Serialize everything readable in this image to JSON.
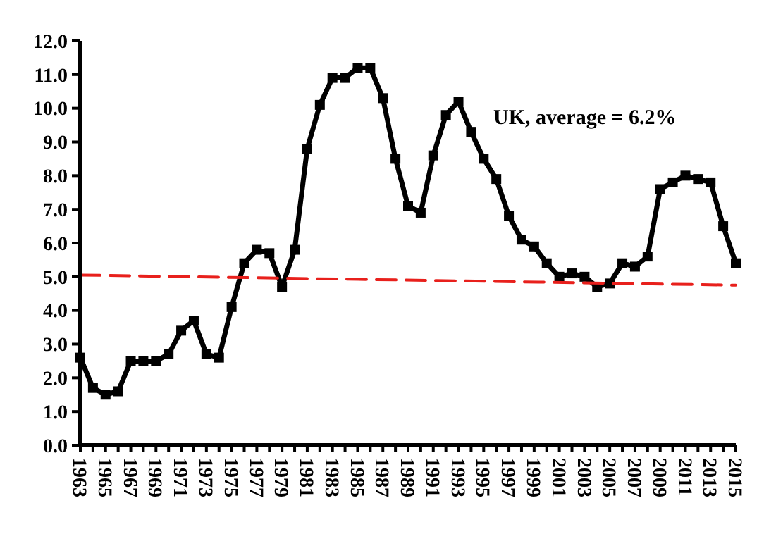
{
  "chart_data": {
    "type": "line",
    "x": [
      1963,
      1964,
      1965,
      1966,
      1967,
      1968,
      1969,
      1970,
      1971,
      1972,
      1973,
      1974,
      1975,
      1976,
      1977,
      1978,
      1979,
      1980,
      1981,
      1982,
      1983,
      1984,
      1985,
      1986,
      1987,
      1988,
      1989,
      1990,
      1991,
      1992,
      1993,
      1994,
      1995,
      1996,
      1997,
      1998,
      1999,
      2000,
      2001,
      2002,
      2003,
      2004,
      2005,
      2006,
      2007,
      2008,
      2009,
      2010,
      2011,
      2012,
      2013,
      2014,
      2015
    ],
    "series": [
      {
        "color": "#000000",
        "marker": "square",
        "line_style": "solid",
        "values": [
          2.6,
          1.7,
          1.5,
          1.6,
          2.5,
          2.5,
          2.5,
          2.7,
          3.4,
          3.7,
          2.7,
          2.6,
          4.1,
          5.4,
          5.8,
          5.7,
          4.7,
          5.8,
          8.8,
          10.1,
          10.9,
          10.9,
          11.2,
          11.2,
          10.3,
          8.5,
          7.1,
          6.9,
          8.6,
          9.8,
          10.2,
          9.3,
          8.5,
          7.9,
          6.8,
          6.1,
          5.9,
          5.4,
          5.0,
          5.1,
          5.0,
          4.7,
          4.8,
          5.4,
          5.3,
          5.6,
          7.6,
          7.8,
          8.0,
          7.9,
          7.8,
          6.5,
          5.4
        ]
      },
      {
        "type": "line",
        "color": "#e8201c",
        "marker": "none",
        "line_style": "dashed",
        "x": [
          1963,
          2015
        ],
        "values": [
          5.05,
          4.75
        ]
      }
    ],
    "annotations": [
      "UK, average = 6.2%"
    ],
    "xlim": [
      1963,
      2015
    ],
    "xticks": [
      1963,
      {
        "value": 1964,
        "label": null
      },
      1965,
      {
        "value": 1966,
        "label": null
      },
      1967,
      {
        "value": 1968,
        "label": null
      },
      1969,
      {
        "value": 1970,
        "label": null
      },
      1971,
      {
        "value": 1972,
        "label": null
      },
      1973,
      {
        "value": 1974,
        "label": null
      },
      1975,
      {
        "value": 1976,
        "label": null
      },
      1977,
      {
        "value": 1978,
        "label": null
      },
      1979,
      {
        "value": 1980,
        "label": null
      },
      1981,
      {
        "value": 1982,
        "label": null
      },
      1983,
      {
        "value": 1984,
        "label": null
      },
      1985,
      {
        "value": 1986,
        "label": null
      },
      1987,
      {
        "value": 1988,
        "label": null
      },
      1989,
      {
        "value": 1990,
        "label": null
      },
      1991,
      {
        "value": 1992,
        "label": null
      },
      1993,
      {
        "value": 1994,
        "label": null
      },
      1995,
      {
        "value": 1996,
        "label": null
      },
      1997,
      {
        "value": 1998,
        "label": null
      },
      1999,
      {
        "value": 2000,
        "label": null
      },
      2001,
      {
        "value": 2002,
        "label": null
      },
      2003,
      {
        "value": 2004,
        "label": null
      },
      2005,
      {
        "value": 2006,
        "label": null
      },
      2007,
      {
        "value": 2008,
        "label": null
      },
      2009,
      {
        "value": 2010,
        "label": null
      },
      2011,
      {
        "value": 2012,
        "label": null
      },
      2013,
      {
        "value": 2014,
        "label": null
      },
      2015
    ],
    "ylim": [
      0,
      12
    ],
    "yticks": [
      {
        "value": 0,
        "label": "0.0"
      },
      {
        "value": 1,
        "label": "1.0"
      },
      {
        "value": 2,
        "label": "2.0"
      },
      {
        "value": 3,
        "label": "3.0"
      },
      {
        "value": 4,
        "label": "4.0"
      },
      {
        "value": 5,
        "label": "5.0"
      },
      {
        "value": 6,
        "label": "6.0"
      },
      {
        "value": 7,
        "label": "7.0"
      },
      {
        "value": 8,
        "label": "8.0"
      },
      {
        "value": 9,
        "label": "9.0"
      },
      {
        "value": 10,
        "label": "10.0"
      },
      {
        "value": 11,
        "label": "11.0"
      },
      {
        "value": 12,
        "label": "12.0"
      }
    ],
    "grid": false
  }
}
